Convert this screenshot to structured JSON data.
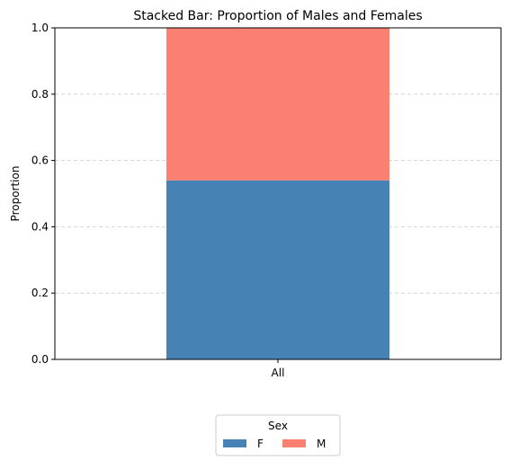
{
  "chart_data": {
    "type": "bar",
    "stacked": true,
    "title": "Stacked Bar: Proportion of Males and Females",
    "xlabel": "",
    "ylabel": "Proportion",
    "categories": [
      "All"
    ],
    "ylim": [
      0,
      1.0
    ],
    "yticks": [
      0.0,
      0.2,
      0.4,
      0.6,
      0.8,
      1.0
    ],
    "ytick_labels": [
      "0.0",
      "0.2",
      "0.4",
      "0.6",
      "0.8",
      "1.0"
    ],
    "grid": {
      "y": true,
      "style": "dashed",
      "x": false
    },
    "series": [
      {
        "name": "F",
        "values": [
          0.54
        ],
        "color": "#4682B4"
      },
      {
        "name": "M",
        "values": [
          0.46
        ],
        "color": "#FA8072"
      }
    ],
    "legend": {
      "title": "Sex",
      "placement": "bottom-center",
      "columns": 2
    }
  }
}
